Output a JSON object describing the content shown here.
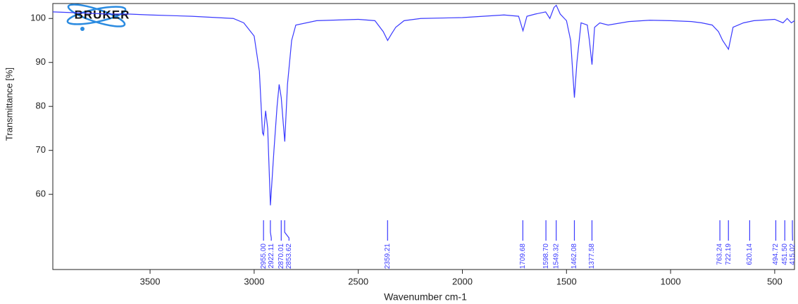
{
  "chart_data": {
    "type": "line",
    "logo": "BRUKER",
    "xlabel": "Wavenumber cm-1",
    "ylabel": "Transmittance [%]",
    "xlim": [
      3967,
      405
    ],
    "ylim": [
      42.9,
      103.4
    ],
    "xticks": [
      3500,
      3000,
      2500,
      2000,
      1500,
      1000,
      500
    ],
    "yticks": [
      60,
      70,
      80,
      90,
      100
    ],
    "x": [
      3967,
      3800,
      3700,
      3600,
      3500,
      3300,
      3100,
      3050,
      3000,
      2975,
      2960,
      2955,
      2945,
      2935,
      2922,
      2905,
      2890,
      2880,
      2870,
      2860,
      2853,
      2840,
      2820,
      2800,
      2700,
      2500,
      2420,
      2380,
      2359,
      2340,
      2320,
      2280,
      2200,
      2000,
      1900,
      1800,
      1730,
      1709,
      1690,
      1650,
      1600,
      1580,
      1560,
      1549,
      1530,
      1500,
      1480,
      1462,
      1450,
      1430,
      1400,
      1390,
      1377.5,
      1365,
      1340,
      1300,
      1200,
      1100,
      1000,
      900,
      850,
      800,
      770,
      750,
      722,
      700,
      650,
      600,
      500,
      460,
      440,
      420,
      405
    ],
    "series": [
      {
        "name": "spectrum",
        "color": "#3a3aff",
        "values": [
          101.5,
          101.2,
          101,
          101,
          100.8,
          100.5,
          100,
          99,
          96,
          88,
          74,
          73.5,
          79,
          75,
          57.5,
          70,
          80,
          85,
          82,
          76,
          72,
          85,
          95,
          98.5,
          99.5,
          99.8,
          99.5,
          97,
          95,
          96.5,
          98,
          99.5,
          100,
          100.2,
          100.5,
          100.8,
          100.5,
          97.2,
          100.5,
          101,
          101.5,
          100,
          102.5,
          103,
          101,
          99.5,
          95,
          82,
          90,
          99,
          98.5,
          95,
          89.5,
          98,
          99,
          98.5,
          99.3,
          99.6,
          99.5,
          99.3,
          99,
          98.5,
          97,
          95,
          93,
          98,
          99,
          99.5,
          99.8,
          99,
          100,
          99,
          99.5
        ]
      }
    ],
    "peaks": [
      {
        "value": 2955.0,
        "label": "2955.00"
      },
      {
        "value": 2922.11,
        "label": "2922.11"
      },
      {
        "value": 2870.01,
        "label": "2870.01"
      },
      {
        "value": 2853.62,
        "label": "2853.62"
      },
      {
        "value": 2359.21,
        "label": "2359.21"
      },
      {
        "value": 1709.68,
        "label": "1709.68"
      },
      {
        "value": 1598.7,
        "label": "1598.70"
      },
      {
        "value": 1549.32,
        "label": "1549.32"
      },
      {
        "value": 1462.08,
        "label": "1462.08"
      },
      {
        "value": 1377.58,
        "label": "1377.58"
      },
      {
        "value": 763.24,
        "label": "763.24"
      },
      {
        "value": 722.19,
        "label": "722.19"
      },
      {
        "value": 620.14,
        "label": "620.14"
      },
      {
        "value": 494.72,
        "label": "494.72"
      },
      {
        "value": 451.5,
        "label": "451.50"
      },
      {
        "value": 415.02,
        "label": "415.02"
      }
    ]
  }
}
